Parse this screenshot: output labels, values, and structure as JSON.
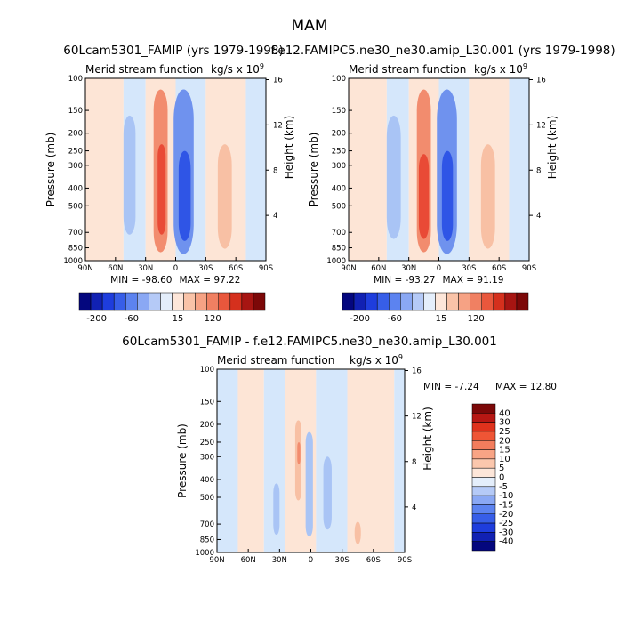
{
  "figure_title": "MAM",
  "chart_data": [
    {
      "type": "heatmap",
      "title": "60Lcam5301_FAMIP (yrs 1979-1998)",
      "left_string": "Merid stream function",
      "units": "kg/s x 10^9",
      "xlabel": "",
      "ylabel": "Pressure (mb)",
      "right_axis_label": "Height (km)",
      "x_ticks": [
        "90N",
        "60N",
        "30N",
        "0",
        "30S",
        "60S",
        "90S"
      ],
      "y_ticks": [
        "100",
        "150",
        "200",
        "250",
        "300",
        "400",
        "500",
        "700",
        "850",
        "1000"
      ],
      "height_ticks": [
        "16",
        "12",
        "8",
        "4"
      ],
      "ylim": [
        1000,
        100
      ],
      "min_label": "MIN =  -98.60",
      "max_label": "MAX =   97.22",
      "colorbar_labels": [
        "-200",
        "-60",
        "15",
        "120"
      ],
      "cells": [
        {
          "lat_range": [
            52,
            40
          ],
          "p_range": [
            160,
            720
          ],
          "level": "neg_weak"
        },
        {
          "lat_range": [
            22,
            8
          ],
          "p_range": [
            115,
            900
          ],
          "level": "pos_mid"
        },
        {
          "lat_range": [
            18,
            10
          ],
          "p_range": [
            230,
            720
          ],
          "level": "pos_strong"
        },
        {
          "lat_range": [
            2,
            -18
          ],
          "p_range": [
            115,
            920
          ],
          "level": "neg_mid"
        },
        {
          "lat_range": [
            -3,
            -15
          ],
          "p_range": [
            250,
            780
          ],
          "level": "neg_strong"
        },
        {
          "lat_range": [
            -42,
            -56
          ],
          "p_range": [
            230,
            860
          ],
          "level": "pos_weak"
        }
      ]
    },
    {
      "type": "heatmap",
      "title": "f.e12.FAMIPC5.ne30_ne30.amip_L30.001 (yrs 1979-1998)",
      "left_string": "Merid stream function",
      "units": "kg/s x 10^9",
      "xlabel": "",
      "ylabel": "Pressure (mb)",
      "right_axis_label": "Height (km)",
      "x_ticks": [
        "90N",
        "60N",
        "30N",
        "0",
        "30S",
        "60S",
        "90S"
      ],
      "y_ticks": [
        "100",
        "150",
        "200",
        "250",
        "300",
        "400",
        "500",
        "700",
        "850",
        "1000"
      ],
      "height_ticks": [
        "16",
        "12",
        "8",
        "4"
      ],
      "ylim": [
        1000,
        100
      ],
      "min_label": "MIN =  -93.27",
      "max_label": "MAX =   91.19",
      "colorbar_labels": [
        "-200",
        "-60",
        "15",
        "120"
      ],
      "cells": [
        {
          "lat_range": [
            52,
            38
          ],
          "p_range": [
            160,
            760
          ],
          "level": "neg_weak"
        },
        {
          "lat_range": [
            22,
            8
          ],
          "p_range": [
            115,
            900
          ],
          "level": "pos_mid"
        },
        {
          "lat_range": [
            20,
            10
          ],
          "p_range": [
            260,
            760
          ],
          "level": "pos_strong"
        },
        {
          "lat_range": [
            2,
            -18
          ],
          "p_range": [
            115,
            920
          ],
          "level": "neg_mid"
        },
        {
          "lat_range": [
            -3,
            -14
          ],
          "p_range": [
            250,
            780
          ],
          "level": "neg_strong"
        },
        {
          "lat_range": [
            -42,
            -56
          ],
          "p_range": [
            230,
            860
          ],
          "level": "pos_weak"
        }
      ]
    },
    {
      "type": "heatmap",
      "title": "60Lcam5301_FAMIP - f.e12.FAMIPC5.ne30_ne30.amip_L30.001",
      "left_string": "Merid stream function",
      "units": "kg/s x 10^9",
      "xlabel": "",
      "ylabel": "Pressure (mb)",
      "right_axis_label": "Height (km)",
      "x_ticks": [
        "90N",
        "60N",
        "30N",
        "0",
        "30S",
        "60S",
        "90S"
      ],
      "y_ticks": [
        "100",
        "150",
        "200",
        "250",
        "300",
        "400",
        "500",
        "700",
        "850",
        "1000"
      ],
      "height_ticks": [
        "16",
        "12",
        "8",
        "4"
      ],
      "ylim": [
        1000,
        100
      ],
      "min_label": "MIN =   -7.24",
      "max_label": "MAX =  12.80",
      "colorbar_labels": [
        "40",
        "30",
        "25",
        "20",
        "15",
        "10",
        "5",
        "0",
        "-5",
        "-10",
        "-15",
        "-20",
        "-25",
        "-30",
        "-40"
      ],
      "cells": [
        {
          "lat_range": [
            36,
            30
          ],
          "p_range": [
            420,
            800
          ],
          "level": "neg_weak"
        },
        {
          "lat_range": [
            15,
            9
          ],
          "p_range": [
            190,
            520
          ],
          "level": "pos_weak"
        },
        {
          "lat_range": [
            13,
            10
          ],
          "p_range": [
            250,
            330
          ],
          "level": "pos_mid"
        },
        {
          "lat_range": [
            5,
            -2
          ],
          "p_range": [
            220,
            820
          ],
          "level": "neg_weak"
        },
        {
          "lat_range": [
            -12,
            -20
          ],
          "p_range": [
            300,
            750
          ],
          "level": "neg_weak"
        },
        {
          "lat_range": [
            -42,
            -48
          ],
          "p_range": [
            680,
            900
          ],
          "level": "pos_weak"
        }
      ]
    }
  ],
  "colors": {
    "background": "#ffffff",
    "frame": "#000000",
    "neg_bg": "#d5e7fb",
    "pos_bg": "#fde5d6",
    "neg_weak": "#a9c4f5",
    "neg_mid": "#6f92ee",
    "neg_strong": "#2f55e6",
    "pos_weak": "#f8c0a4",
    "pos_mid": "#f28c6e",
    "pos_strong": "#e94a36",
    "colorbar_full": [
      "#04077e",
      "#1121b3",
      "#1e3ddd",
      "#375ee8",
      "#5c83f0",
      "#8aa8f4",
      "#b5caf7",
      "#e4eefb",
      "#fde6d9",
      "#f9c3a8",
      "#f6a284",
      "#f08062",
      "#e9573c",
      "#d5301d",
      "#a71512",
      "#7c0808"
    ],
    "colorbar_diff": [
      "#7c0808",
      "#b71713",
      "#df321c",
      "#ef5535",
      "#f37d5d",
      "#f8a485",
      "#fbc7ad",
      "#fde6d9",
      "#e4eefb",
      "#b5caf7",
      "#8aa8f4",
      "#5c83f0",
      "#375ee8",
      "#1e3ddd",
      "#1121b3",
      "#04077e"
    ]
  }
}
